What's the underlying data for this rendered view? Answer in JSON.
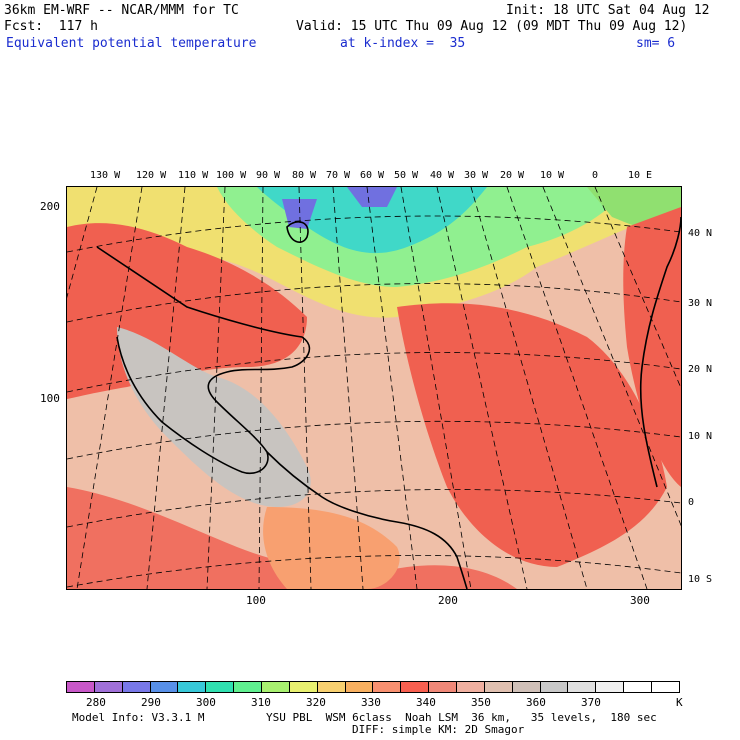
{
  "header": {
    "model": "36km EM-WRF -- NCAR/MMM for TC",
    "init": "Init: 18 UTC Sat 04 Aug 12",
    "fcst": "Fcst:  117 h",
    "valid": "Valid: 15 UTC Thu 09 Aug 12 (09 MDT Thu 09 Aug 12)",
    "field": "Equivalent potential temperature",
    "level": "at k-index =  35",
    "smooth": "sm= 6"
  },
  "longitude_labels": [
    "130 W",
    "120 W",
    "110 W",
    "100 W",
    "90 W",
    "80 W",
    "70 W",
    "60 W",
    "50 W",
    "40 W",
    "30 W",
    "20 W",
    "10 W",
    "0",
    "10 E"
  ],
  "latitude_labels": [
    "40 N",
    "30 N",
    "20 N",
    "10 N",
    "0",
    "10 S"
  ],
  "grid_y_labels": [
    "200",
    "100"
  ],
  "grid_x_labels": [
    "100",
    "200",
    "300"
  ],
  "colorbar": {
    "colors": [
      "#c858c8",
      "#a070d8",
      "#7878e8",
      "#5890e8",
      "#38c8d8",
      "#30e0b0",
      "#60f090",
      "#a8f070",
      "#e8f070",
      "#f8d070",
      "#f8b060",
      "#f89070",
      "#f86050",
      "#f08878",
      "#f0b0a0",
      "#e0c0b0",
      "#d0c0b8",
      "#c8c8c8",
      "#e0e0e0",
      "#f0f0f0",
      "#ffffff",
      "#ffffff"
    ],
    "tick_labels": [
      "280",
      "290",
      "300",
      "310",
      "320",
      "330",
      "340",
      "350",
      "360",
      "370"
    ],
    "unit": "K"
  },
  "footer": {
    "line1_left": "Model Info: V3.3.1 M",
    "line1_right": "YSU PBL  WSM 6class  Noah LSM  36 km,   35 levels,  180 sec",
    "line2": "DIFF: simple KM: 2D Smagor"
  }
}
